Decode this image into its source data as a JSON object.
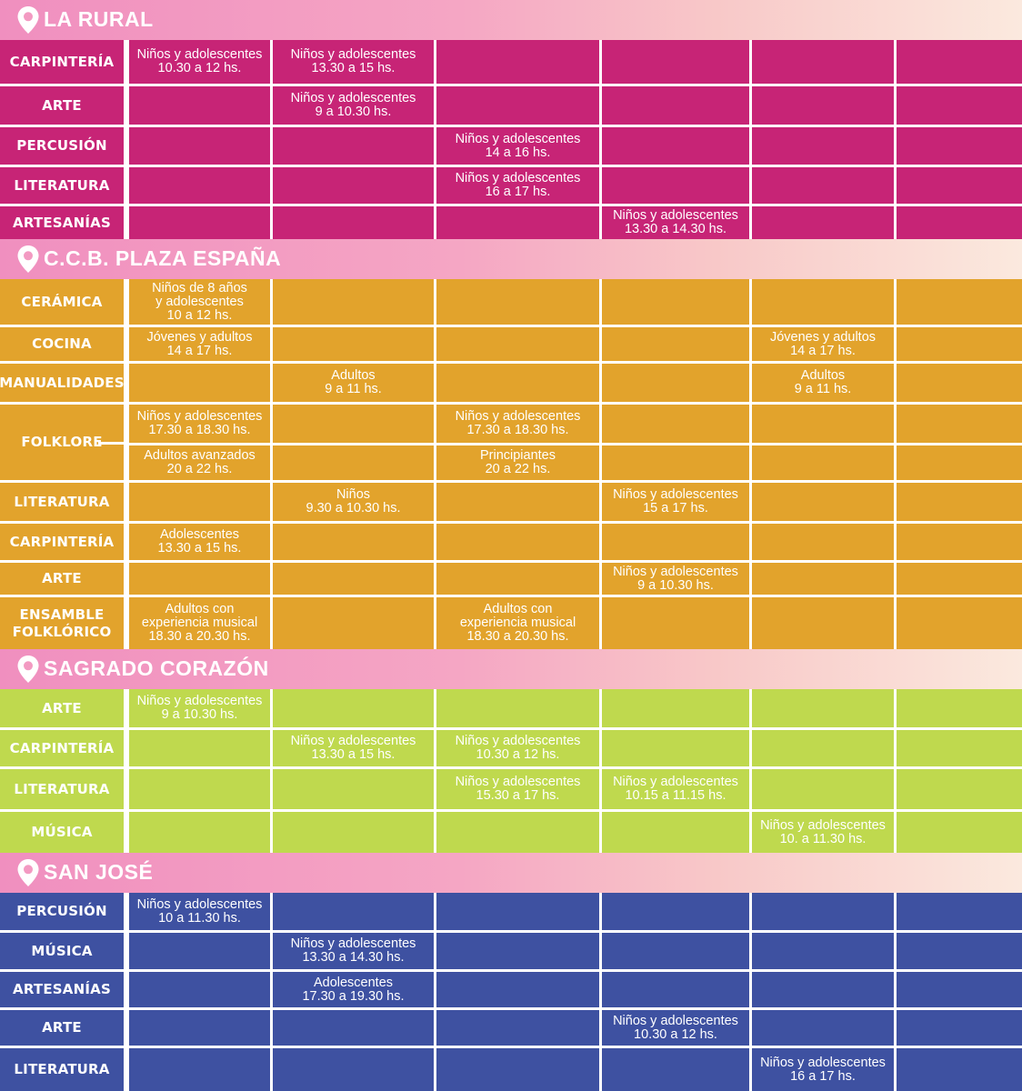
{
  "sections": [
    {
      "title": "LA RURAL",
      "color": "#c72476",
      "rows": [
        {
          "label": "CARPINTERÍA",
          "cells": [
            "Niños y adolescentes\n10.30 a 12 hs.",
            "Niños y adolescentes\n13.30 a 15 hs.",
            "",
            "",
            "",
            ""
          ]
        },
        {
          "label": "ARTE",
          "cells": [
            "",
            "Niños y adolescentes\n9 a 10.30 hs.",
            "",
            "",
            "",
            ""
          ]
        },
        {
          "label": "PERCUSIÓN",
          "cells": [
            "",
            "",
            "Niños y adolescentes\n14 a 16 hs.",
            "",
            "",
            ""
          ]
        },
        {
          "label": "LITERATURA",
          "cells": [
            "",
            "",
            "Niños y adolescentes\n16 a 17 hs.",
            "",
            "",
            ""
          ]
        },
        {
          "label": "ARTESANÍAS",
          "cells": [
            "",
            "",
            "",
            "Niños y adolescentes\n13.30 a 14.30 hs.",
            "",
            ""
          ]
        }
      ]
    },
    {
      "title": "C.C.B. PLAZA ESPAÑA",
      "color": "#e2a32c",
      "rows": [
        {
          "label": "CERÁMICA",
          "cells": [
            "Niños de 8 años\ny adolescentes\n10 a 12 hs.",
            "",
            "",
            "",
            "",
            ""
          ]
        },
        {
          "label": "COCINA",
          "cells": [
            "Jóvenes y adultos\n14 a 17 hs.",
            "",
            "",
            "",
            "Jóvenes y adultos\n14 a 17 hs.",
            ""
          ]
        },
        {
          "label": "MANUALIDADES",
          "cells": [
            "",
            "Adultos\n9 a 11 hs.",
            "",
            "",
            "Adultos\n9 a 11 hs.",
            ""
          ]
        },
        {
          "label": "FOLKLORE",
          "cells": [
            "Niños y adolescentes\n17.30 a 18.30 hs.",
            "",
            "Niños y adolescentes\n17.30 a 18.30 hs.",
            "",
            "",
            ""
          ]
        },
        {
          "label": "",
          "cells": [
            "Adultos avanzados\n20 a 22 hs.",
            "",
            "Principiantes\n20 a 22 hs.",
            "",
            "",
            ""
          ]
        },
        {
          "label": "LITERATURA",
          "cells": [
            "",
            "Niños\n9.30 a 10.30 hs.",
            "",
            "Niños y adolescentes\n15 a 17 hs.",
            "",
            ""
          ]
        },
        {
          "label": "CARPINTERÍA",
          "cells": [
            "Adolescentes\n13.30 a 15 hs.",
            "",
            "",
            "",
            "",
            ""
          ]
        },
        {
          "label": "ARTE",
          "cells": [
            "",
            "",
            "",
            "Niños y adolescentes\n9 a 10.30 hs.",
            "",
            ""
          ]
        },
        {
          "label": "ENSAMBLE\nFOLKLÓRICO",
          "cells": [
            "Adultos con\nexperiencia musical\n18.30 a 20.30 hs.",
            "",
            "Adultos con\nexperiencia musical\n18.30 a 20.30 hs.",
            "",
            "",
            ""
          ]
        }
      ]
    },
    {
      "title": "SAGRADO CORAZÓN",
      "color": "#bfd94e",
      "rows": [
        {
          "label": "ARTE",
          "cells": [
            "Niños y adolescentes\n9  a 10.30 hs.",
            "",
            "",
            "",
            "",
            ""
          ]
        },
        {
          "label": "CARPINTERÍA",
          "cells": [
            "",
            "Niños y adolescentes\n13.30  a 15 hs.",
            "Niños y adolescentes\n10.30  a 12 hs.",
            "",
            "",
            ""
          ]
        },
        {
          "label": "LITERATURA",
          "cells": [
            "",
            "",
            "Niños y adolescentes\n15.30  a 17 hs.",
            "Niños y adolescentes\n10.15  a 11.15 hs.",
            "",
            ""
          ]
        },
        {
          "label": "MÚSICA",
          "cells": [
            "",
            "",
            "",
            "",
            "Niños y adolescentes\n10.  a 11.30 hs.",
            ""
          ]
        }
      ]
    },
    {
      "title": "SAN JOSÉ",
      "color": "#3e51a1",
      "rows": [
        {
          "label": "PERCUSIÓN",
          "cells": [
            "Niños y adolescentes\n10  a 11.30 hs.",
            "",
            "",
            "",
            "",
            ""
          ]
        },
        {
          "label": "MÚSICA",
          "cells": [
            "",
            "Niños y adolescentes\n13.30  a 14.30 hs.",
            "",
            "",
            "",
            ""
          ]
        },
        {
          "label": "ARTESANÍAS",
          "cells": [
            "",
            "Adolescentes\n17.30  a 19.30 hs.",
            "",
            "",
            "",
            ""
          ]
        },
        {
          "label": "ARTE",
          "cells": [
            "",
            "",
            "",
            "Niños y adolescentes\n10.30  a 12 hs.",
            "",
            ""
          ]
        },
        {
          "label": "LITERATURA",
          "cells": [
            "",
            "",
            "",
            "",
            "Niños y adolescentes\n16  a 17 hs.",
            ""
          ]
        }
      ]
    }
  ]
}
